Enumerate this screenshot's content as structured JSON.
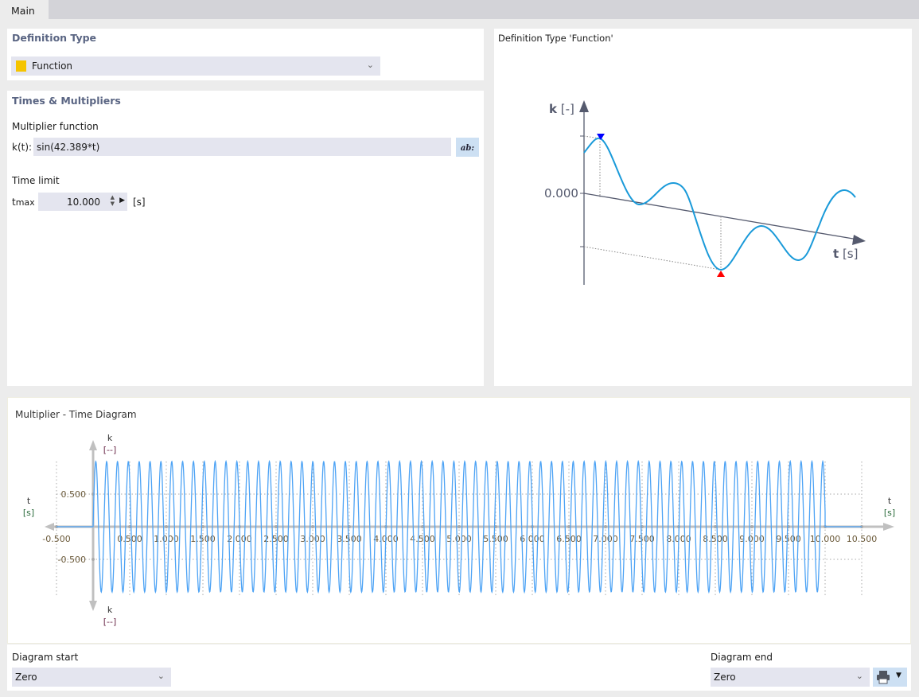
{
  "tabs": [
    {
      "label": "Main",
      "active": true
    }
  ],
  "definition_type": {
    "heading": "Definition Type",
    "selected": "Function",
    "swatch_color": "#f5c400"
  },
  "times": {
    "heading": "Times & Multipliers",
    "multiplier_label": "Multiplier function",
    "k_label": "k(t):",
    "k_value": "sin(42.389*t)",
    "editor_button_icon": "formula-editor-icon",
    "time_limit_label": "Time limit",
    "tmax_label": "t",
    "tmax_sub": "max",
    "tmax_value": "10.000",
    "tmax_unit": "[s]"
  },
  "preview": {
    "title": "Definition Type 'Function'",
    "y_axis": "k",
    "y_unit": "[-]",
    "x_axis": "t",
    "x_unit": "[s]",
    "zero_label": "0.000",
    "max_marker_color": "#0000ff",
    "min_marker_color": "#ff0000"
  },
  "diagram": {
    "title": "Multiplier - Time Diagram"
  },
  "chart_data": {
    "type": "line",
    "function": "sin(42.389*t)",
    "xlabel": "t",
    "xunit": "[s]",
    "ylabel": "k",
    "yunit": "[--]",
    "xlim": [
      -0.5,
      10.5
    ],
    "ylim": [
      -1,
      1
    ],
    "x_ticks": [
      "-0.500",
      "0.500",
      "1.000",
      "1.500",
      "2.000",
      "2.500",
      "3.000",
      "3.500",
      "4.000",
      "4.500",
      "5.000",
      "5.500",
      "6.000",
      "6.500",
      "7.000",
      "7.500",
      "8.000",
      "8.500",
      "9.000",
      "9.500",
      "10.000",
      "10.500"
    ],
    "y_ticks": [
      "0.500",
      "-0.500"
    ],
    "series": [
      {
        "omega": 42.389,
        "t_start": 0,
        "t_end": 10,
        "before": 0,
        "after": 0,
        "color": "#4da3f5"
      }
    ],
    "grid": true
  },
  "footer": {
    "start_label": "Diagram start",
    "start_value": "Zero",
    "end_label": "Diagram end",
    "end_value": "Zero",
    "print_icon": "printer-icon"
  }
}
